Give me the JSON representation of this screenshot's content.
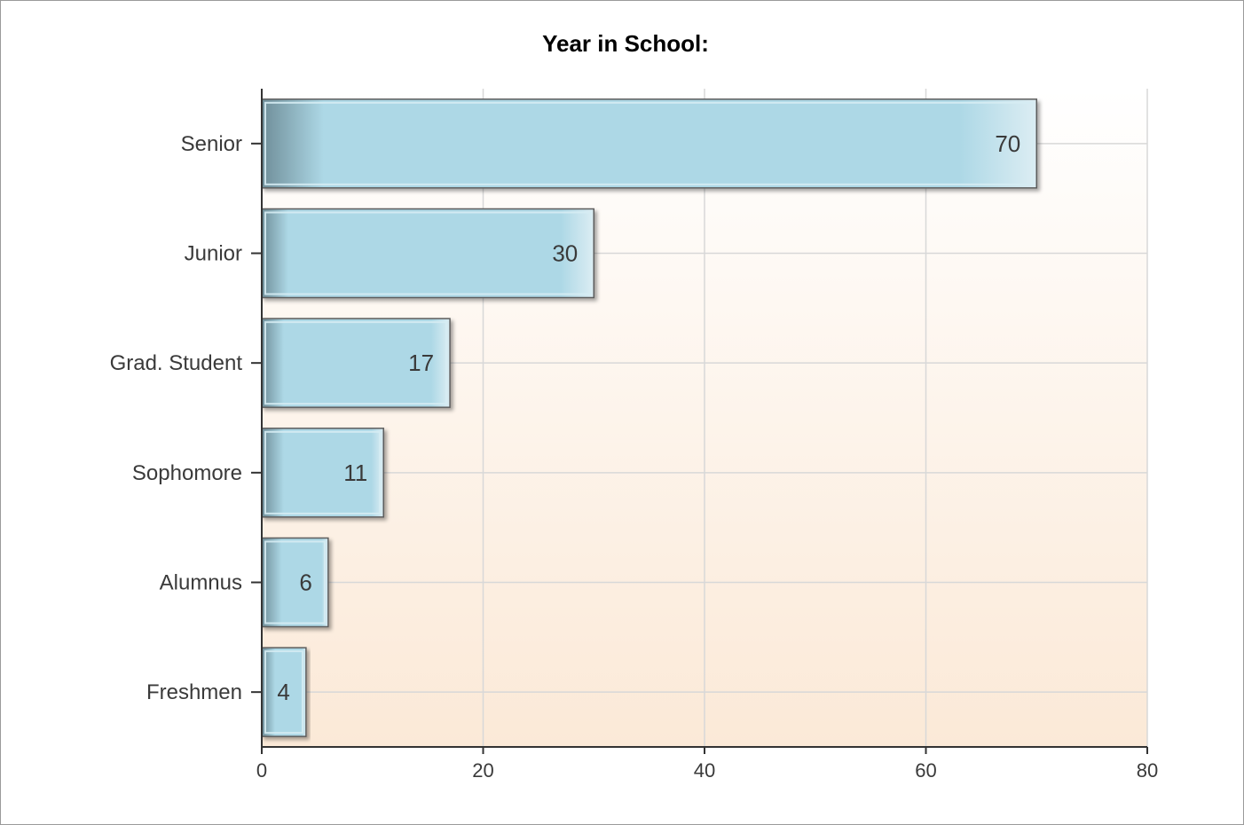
{
  "chart_data": {
    "type": "bar",
    "orientation": "horizontal",
    "title": "Year in School:",
    "categories": [
      "Senior",
      "Junior",
      "Grad. Student",
      "Sophomore",
      "Alumnus",
      "Freshmen"
    ],
    "values": [
      70,
      30,
      17,
      11,
      6,
      4
    ],
    "xlim": [
      0,
      80
    ],
    "xticks": [
      0,
      20,
      40,
      60,
      80
    ],
    "xlabel": "",
    "ylabel": "",
    "grid": true,
    "legend": "none",
    "colors": {
      "bar_light": "#add8e6",
      "bar_dark": "#6f8e99",
      "bar_border": "#5d5d5d",
      "plot_bg_top": "#ffffff",
      "plot_bg_bottom": "#fbe9d7",
      "grid": "#d8d8d8",
      "axis": "#333333"
    }
  }
}
